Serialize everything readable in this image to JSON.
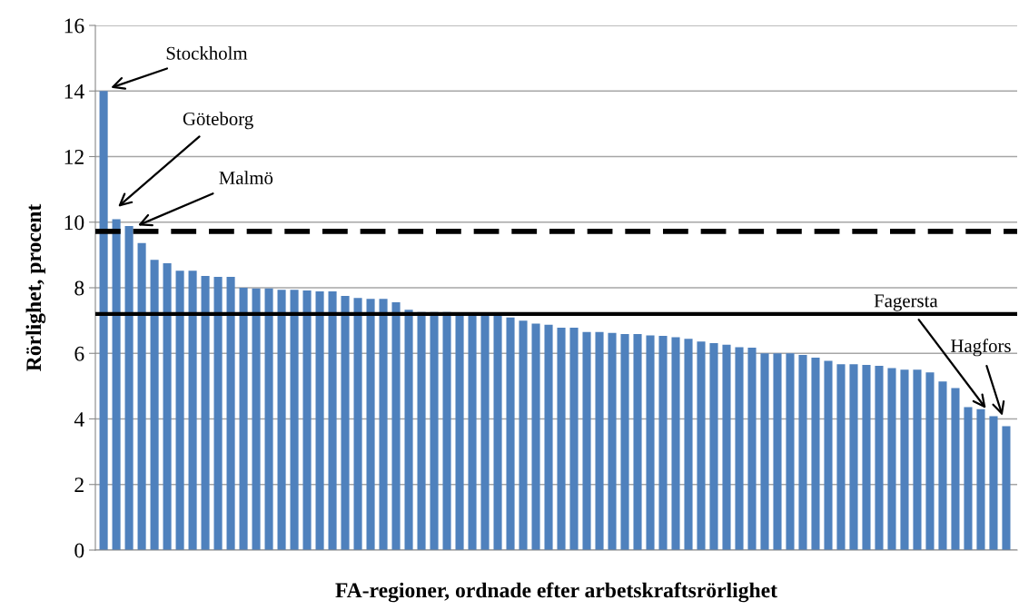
{
  "chart_data": {
    "type": "bar",
    "xlabel": "FA-regioner, ordnade efter arbetskraftsrörlighet",
    "ylabel": "Rörlighet, procent",
    "categories": [
      null,
      null,
      null,
      null,
      null,
      null,
      null,
      null,
      null,
      null,
      null,
      null,
      null,
      null,
      null,
      null,
      null,
      null,
      null,
      null,
      null,
      null,
      null,
      null,
      null,
      null,
      null,
      null,
      null,
      null,
      null,
      null,
      null,
      null,
      null,
      null,
      null,
      null,
      null,
      null,
      null,
      null,
      null,
      null,
      null,
      null,
      null,
      null,
      null,
      null,
      null,
      null,
      null,
      null,
      null,
      null,
      null,
      null,
      null,
      null,
      null,
      null,
      null,
      null,
      null,
      null,
      null,
      null,
      null,
      null,
      null,
      null
    ],
    "values": [
      14.0,
      10.09,
      9.88,
      9.36,
      8.85,
      8.75,
      8.52,
      8.52,
      8.36,
      8.33,
      8.33,
      8.0,
      7.98,
      7.98,
      7.94,
      7.94,
      7.92,
      7.89,
      7.89,
      7.75,
      7.69,
      7.66,
      7.66,
      7.56,
      7.33,
      7.26,
      7.26,
      7.26,
      7.2,
      7.2,
      7.2,
      7.17,
      7.09,
      7.0,
      6.91,
      6.87,
      6.78,
      6.78,
      6.65,
      6.65,
      6.62,
      6.59,
      6.59,
      6.55,
      6.53,
      6.49,
      6.44,
      6.36,
      6.31,
      6.26,
      6.19,
      6.17,
      6.0,
      6.0,
      6.0,
      5.95,
      5.87,
      5.77,
      5.67,
      5.67,
      5.65,
      5.62,
      5.55,
      5.5,
      5.5,
      5.42,
      5.14,
      4.94,
      4.36,
      4.3,
      4.08,
      3.78
    ],
    "color": "#4f81bd",
    "ylim": [
      0,
      16
    ],
    "yticks": [
      0,
      2,
      4,
      6,
      8,
      10,
      12,
      14,
      16
    ],
    "grid": "y",
    "ref_lines": [
      {
        "axis": "y",
        "value": 9.72,
        "color": "#000000",
        "line_style": "dashed"
      },
      {
        "axis": "y",
        "value": 7.2,
        "color": "#000000",
        "line_style": "solid"
      }
    ],
    "annotations": [
      "Stockholm",
      "Göteborg",
      "Malmö",
      "Fagersta",
      "Hagfors"
    ]
  }
}
